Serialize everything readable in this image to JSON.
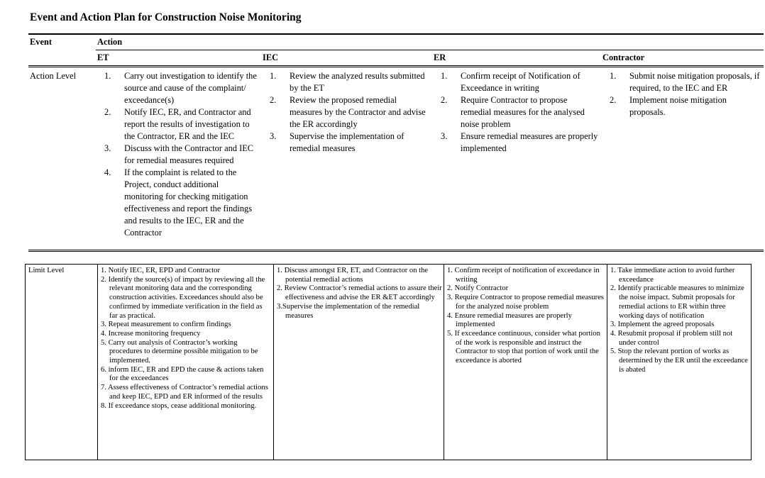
{
  "page": {
    "title": "Event and Action Plan for Construction Noise Monitoring"
  },
  "action_table": {
    "headers": {
      "event": "Event",
      "action": "Action",
      "et": "ET",
      "iec": "IEC",
      "er": "ER",
      "contractor": "Contractor"
    },
    "row_label": "Action Level",
    "et": [
      {
        "n": "1.",
        "t": "Carry out investigation to identify the source and cause of the complaint/ exceedance(s)"
      },
      {
        "n": "2.",
        "t": "Notify IEC, ER, and Contractor and report the results of investigation to the Contractor, ER and the IEC"
      },
      {
        "n": "3.",
        "t": "Discuss with the Contractor and IEC for remedial measures required"
      },
      {
        "n": "4.",
        "t": "If the complaint is related to the Project, conduct additional monitoring for checking mitigation effectiveness and report the findings and results to the IEC, ER and the Contractor"
      }
    ],
    "iec": [
      {
        "n": "1.",
        "t": "Review the analyzed results submitted by the ET"
      },
      {
        "n": "2.",
        "t": "Review the proposed remedial measures by the Contractor and advise the ER accordingly"
      },
      {
        "n": "3.",
        "t": "Supervise the implementation of remedial measures"
      }
    ],
    "er": [
      {
        "n": "1.",
        "t": "Confirm receipt of Notification of Exceedance in writing"
      },
      {
        "n": "2.",
        "t": "Require Contractor to propose remedial measures for the analysed noise problem"
      },
      {
        "n": "3.",
        "t": "Ensure remedial measures are properly implemented"
      }
    ],
    "contractor": [
      {
        "n": "1.",
        "t": "Submit noise mitigation proposals, if required, to the IEC and ER"
      },
      {
        "n": "2.",
        "t": "Implement noise mitigation proposals."
      }
    ]
  },
  "limit_table": {
    "row_label": "Limit Level",
    "et": [
      "1. Notify IEC, ER, EPD and Contractor",
      "2. Identify the source(s) of impact by reviewing all the relevant monitoring data and the corresponding construction activities. Exceedances should also be confirmed by immediate verification in the field as far as practical.",
      "3. Repeat measurement to confirm findings",
      "4. Increase monitoring frequency",
      "5. Carry out analysis of Contractor’s working procedures to determine possible mitigation to be implemented.",
      "6. inform IEC, ER and EPD the cause & actions taken for the exceedances",
      "7. Assess effectiveness of Contractor’s remedial actions and keep IEC, EPD and ER informed of the results",
      "8. If exceedance stops, cease additional monitoring."
    ],
    "iec": [
      "1. Discuss amongst ER, ET, and Contractor on the potential remedial actions",
      "2. Review Contractor’s remedial actions to assure their effectiveness and advise the ER &ET accordingly",
      "3.Supervise the implementation of the remedial measures"
    ],
    "er": [
      "1. Confirm receipt of notification of exceedance in writing",
      "2. Notify Contractor",
      "3. Require Contractor to propose remedial measures for the analyzed noise problem",
      "4. Ensure remedial measures are properly implemented",
      "5. If exceedance continuous, consider what portion of the work is responsible and instruct the Contractor to stop that portion of work until the exceedance is aborted"
    ],
    "contractor": [
      "1. Take immediate action to avoid further exceedance",
      "2. Identify practicable measures to minimize the noise impact.  Submit proposals for remedial actions to ER within three working days of notification",
      "3. Implement the agreed proposals",
      "4. Resubmit proposal if problem still not under control",
      "5. Stop the relevant portion of works as determined by the ER until the exceedance is abated"
    ]
  }
}
